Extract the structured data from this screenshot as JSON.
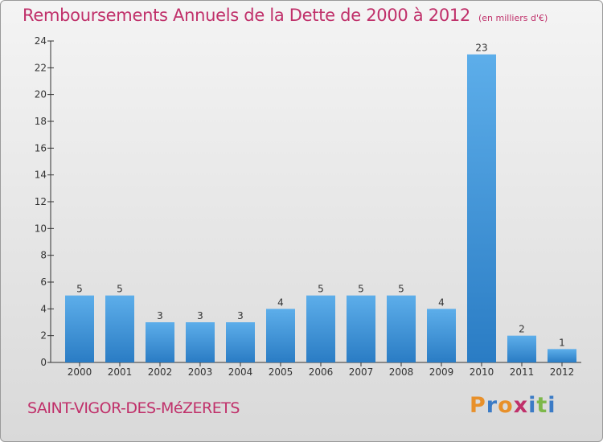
{
  "title": "Remboursements Annuels de la Dette de 2000 à 2012",
  "unit_label": "(en milliers d'€)",
  "commune": "SAINT-VIGOR-DES-MéZERETS",
  "logo_text": "Proxiti",
  "colors": {
    "title": "#c0306a",
    "bar": "#3a8fd8",
    "logo_letters": [
      "#e8902a",
      "#3b7bc6",
      "#e8902a",
      "#c0306a",
      "#3b7bc6",
      "#7db84a",
      "#3b7bc6"
    ]
  },
  "chart_data": {
    "type": "bar",
    "title": "Remboursements Annuels de la Dette de 2000 à 2012",
    "subtitle": "(en milliers d'€)",
    "xlabel": "",
    "ylabel": "",
    "categories": [
      "2000",
      "2001",
      "2002",
      "2003",
      "2004",
      "2005",
      "2006",
      "2007",
      "2008",
      "2009",
      "2010",
      "2011",
      "2012"
    ],
    "values": [
      5,
      5,
      3,
      3,
      3,
      4,
      5,
      5,
      5,
      4,
      23,
      2,
      1
    ],
    "ylim": [
      0,
      24
    ],
    "yticks": [
      0,
      2,
      4,
      6,
      8,
      10,
      12,
      14,
      16,
      18,
      20,
      22,
      24
    ],
    "grid": false,
    "data_labels": true
  }
}
